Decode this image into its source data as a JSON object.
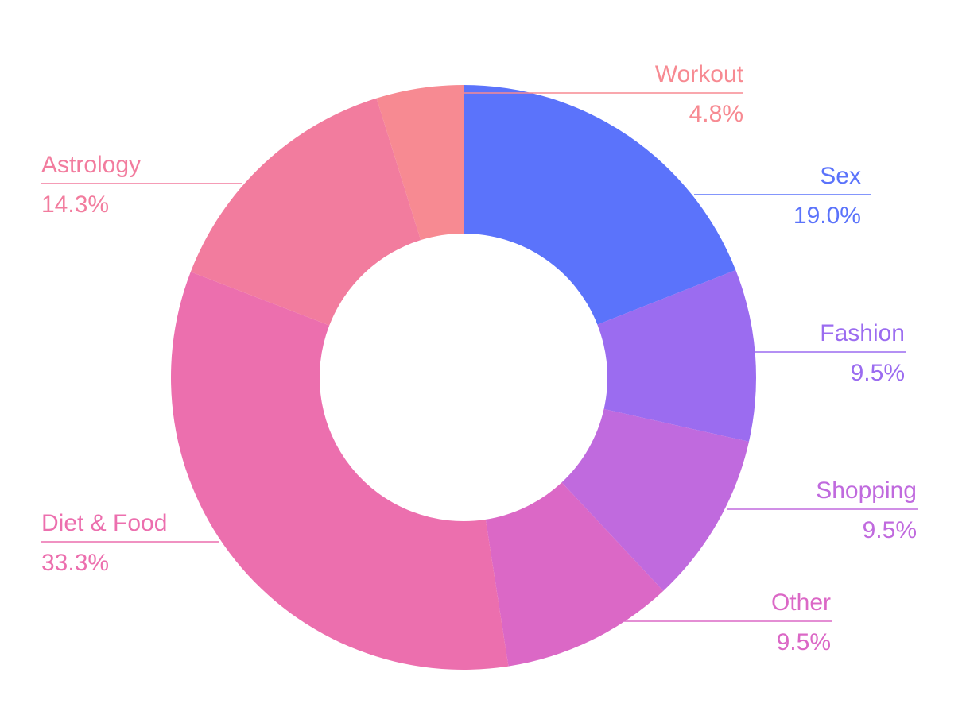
{
  "chart_data": {
    "type": "donut",
    "categories": [
      "Sex",
      "Fashion",
      "Shopping",
      "Other",
      "Diet & Food",
      "Astrology",
      "Workout"
    ],
    "values": [
      19.0,
      9.5,
      9.5,
      9.5,
      33.3,
      14.3,
      4.8
    ],
    "value_labels": [
      "19.0%",
      "9.5%",
      "9.5%",
      "9.5%",
      "33.3%",
      "14.3%",
      "4.8%"
    ],
    "colors": [
      "#5b73fb",
      "#9b6cf0",
      "#c06ade",
      "#db68c6",
      "#ec6fae",
      "#f27c9e",
      "#f78a92"
    ]
  }
}
